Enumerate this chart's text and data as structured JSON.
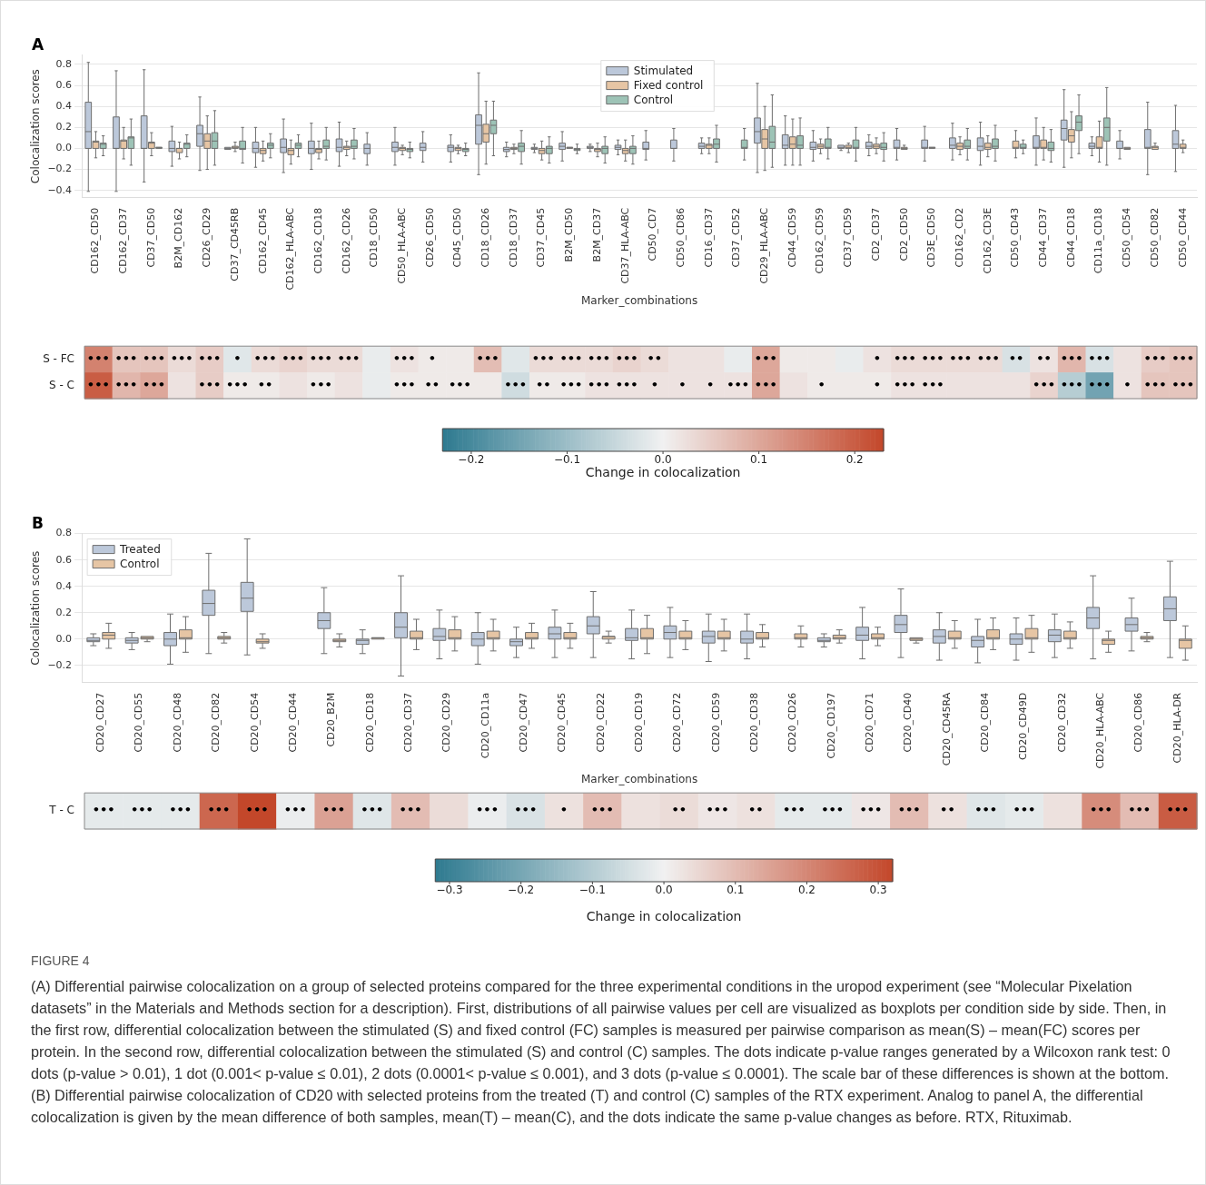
{
  "chart_data": [
    {
      "type": "box",
      "title": "A",
      "xlabel": "Marker_combinations",
      "ylabel": "Colocalization scores",
      "ylim": [
        -0.47,
        0.89
      ],
      "yticks": [
        {
          "value": -0.4,
          "label": "−0.4"
        },
        {
          "value": -0.2,
          "label": "−0.2"
        },
        {
          "value": 0,
          "label": "0.0"
        },
        0.2,
        0.4,
        0.6,
        0.8
      ],
      "grid": "y",
      "legend": "top",
      "categories": [
        "CD162_CD50",
        "CD162_CD37",
        "CD37_CD50",
        "B2M_CD162",
        "CD26_CD29",
        "CD37_CD45RB",
        "CD162_CD45",
        "CD162_HLA-ABC",
        "CD162_CD18",
        "CD162_CD26",
        "CD18_CD50",
        "CD50_HLA-ABC",
        "CD26_CD50",
        "CD45_CD50",
        "CD18_CD26",
        "CD18_CD37",
        "CD37_CD45",
        "B2M_CD50",
        "B2M_CD37",
        "CD37_HLA-ABC",
        "CD50_CD7",
        "CD50_CD86",
        "CD16_CD37",
        "CD37_CD52",
        "CD29_HLA-ABC",
        "CD44_CD59",
        "CD162_CD59",
        "CD37_CD59",
        "CD2_CD37",
        "CD2_CD50",
        "CD3E_CD50",
        "CD162_CD2",
        "CD162_CD3E",
        "CD50_CD43",
        "CD44_CD37",
        "CD44_CD18",
        "CD11a_CD18",
        "CD50_CD54",
        "CD50_CD82",
        "CD50_CD44"
      ],
      "series": [
        {
          "name": "Stimulated",
          "color": "#bcc8da",
          "boxes": [
            {
              "low": -0.41,
              "q1": 0,
              "median": 0.16,
              "q3": 0.44,
              "high": 0.82
            },
            {
              "low": -0.41,
              "q1": 0,
              "median": 0,
              "q3": 0.3,
              "high": 0.74
            },
            {
              "low": -0.32,
              "q1": 0,
              "median": 0,
              "q3": 0.31,
              "high": 0.75
            },
            {
              "low": -0.17,
              "q1": -0.03,
              "median": 0,
              "q3": 0.07,
              "high": 0.21
            },
            {
              "low": -0.21,
              "q1": 0.02,
              "median": 0.14,
              "q3": 0.22,
              "high": 0.49
            },
            {
              "low": -0.01,
              "q1": -0.01,
              "median": 0,
              "q3": 0.01,
              "high": 0.01
            },
            {
              "low": -0.18,
              "q1": -0.04,
              "median": 0,
              "q3": 0.06,
              "high": 0.2
            },
            {
              "low": -0.23,
              "q1": -0.04,
              "median": 0.01,
              "q3": 0.09,
              "high": 0.28
            },
            {
              "low": -0.2,
              "q1": -0.05,
              "median": 0,
              "q3": 0.07,
              "high": 0.24
            },
            {
              "low": -0.17,
              "q1": -0.03,
              "median": 0.01,
              "q3": 0.09,
              "high": 0.25
            },
            {
              "low": -0.16,
              "q1": -0.05,
              "median": 0,
              "q3": 0.04,
              "high": 0.15
            },
            {
              "low": -0.16,
              "q1": -0.03,
              "median": 0.01,
              "q3": 0.06,
              "high": 0.2
            },
            {
              "low": -0.13,
              "q1": -0.02,
              "median": 0.01,
              "q3": 0.05,
              "high": 0.16
            },
            {
              "low": -0.13,
              "q1": -0.03,
              "median": 0.01,
              "q3": 0.03,
              "high": 0.13
            },
            {
              "low": -0.25,
              "q1": 0.04,
              "median": 0.22,
              "q3": 0.32,
              "high": 0.72
            },
            {
              "low": -0.08,
              "q1": -0.03,
              "median": -0.01,
              "q3": 0.01,
              "high": 0.06
            },
            {
              "low": -0.04,
              "q1": -0.01,
              "median": 0,
              "q3": 0.01,
              "high": 0.04
            },
            {
              "low": -0.12,
              "q1": -0.01,
              "median": 0.02,
              "q3": 0.05,
              "high": 0.16
            },
            {
              "low": -0.03,
              "q1": 0,
              "median": 0.01,
              "q3": 0.02,
              "high": 0.04
            },
            {
              "low": -0.06,
              "q1": -0.01,
              "median": 0.01,
              "q3": 0.03,
              "high": 0.08
            },
            {
              "low": -0.11,
              "q1": -0.01,
              "median": 0,
              "q3": 0.06,
              "high": 0.17
            },
            {
              "low": -0.12,
              "q1": 0,
              "median": 0,
              "q3": 0.08,
              "high": 0.19
            },
            {
              "low": -0.05,
              "q1": 0,
              "median": 0.02,
              "q3": 0.05,
              "high": 0.1
            },
            null,
            {
              "low": -0.23,
              "q1": 0.05,
              "median": 0.16,
              "q3": 0.29,
              "high": 0.62
            },
            {
              "low": -0.16,
              "q1": 0,
              "median": 0.03,
              "q3": 0.13,
              "high": 0.31
            },
            {
              "low": -0.12,
              "q1": -0.01,
              "median": 0.01,
              "q3": 0.06,
              "high": 0.17
            },
            {
              "low": -0.02,
              "q1": 0,
              "median": 0.01,
              "q3": 0.03,
              "high": 0.04
            },
            {
              "low": -0.07,
              "q1": 0,
              "median": 0.02,
              "q3": 0.06,
              "high": 0.13
            },
            {
              "low": -0.11,
              "q1": 0,
              "median": 0.01,
              "q3": 0.08,
              "high": 0.19
            },
            {
              "low": -0.12,
              "q1": 0,
              "median": 0.01,
              "q3": 0.08,
              "high": 0.21
            },
            {
              "low": -0.11,
              "q1": 0,
              "median": 0.03,
              "q3": 0.1,
              "high": 0.24
            },
            {
              "low": -0.16,
              "q1": -0.02,
              "median": 0.02,
              "q3": 0.1,
              "high": 0.25
            },
            null,
            {
              "low": -0.16,
              "q1": 0,
              "median": 0.01,
              "q3": 0.12,
              "high": 0.29
            },
            {
              "low": -0.18,
              "q1": 0.08,
              "median": 0.19,
              "q3": 0.27,
              "high": 0.56
            },
            {
              "low": -0.07,
              "q1": 0,
              "median": 0.02,
              "q3": 0.05,
              "high": 0.11
            },
            {
              "low": -0.1,
              "q1": 0,
              "median": 0,
              "q3": 0.07,
              "high": 0.17
            },
            {
              "low": -0.25,
              "q1": 0,
              "median": 0.01,
              "q3": 0.18,
              "high": 0.44
            },
            {
              "low": -0.22,
              "q1": 0,
              "median": 0.04,
              "q3": 0.17,
              "high": 0.41
            }
          ]
        },
        {
          "name": "Fixed control",
          "color": "#e6c5a4",
          "boxes": [
            {
              "low": -0.09,
              "q1": 0,
              "median": 0.06,
              "q3": 0.07,
              "high": 0.16
            },
            {
              "low": -0.1,
              "q1": 0,
              "median": 0.07,
              "q3": 0.08,
              "high": 0.2
            },
            {
              "low": -0.07,
              "q1": 0,
              "median": 0.05,
              "q3": 0.06,
              "high": 0.15
            },
            {
              "low": -0.1,
              "q1": -0.04,
              "median": 0,
              "q3": 0,
              "high": 0.06
            },
            {
              "low": -0.2,
              "q1": 0,
              "median": 0.07,
              "q3": 0.14,
              "high": 0.31
            },
            {
              "low": -0.03,
              "q1": 0,
              "median": 0.01,
              "q3": 0.02,
              "high": 0.06
            },
            {
              "low": -0.12,
              "q1": -0.05,
              "median": -0.02,
              "q3": 0,
              "high": 0.07
            },
            {
              "low": -0.15,
              "q1": -0.06,
              "median": -0.02,
              "q3": 0,
              "high": 0.08
            },
            {
              "low": -0.1,
              "q1": -0.04,
              "median": -0.01,
              "q3": 0,
              "high": 0.07
            },
            {
              "low": -0.07,
              "q1": -0.01,
              "median": 0.01,
              "q3": 0.02,
              "high": 0.07
            },
            null,
            {
              "low": -0.06,
              "q1": -0.02,
              "median": 0,
              "q3": 0.01,
              "high": 0.03
            },
            null,
            {
              "low": -0.05,
              "q1": -0.02,
              "median": 0,
              "q3": 0.01,
              "high": 0.03
            },
            {
              "low": -0.15,
              "q1": 0.06,
              "median": 0.14,
              "q3": 0.23,
              "high": 0.45
            },
            {
              "low": -0.05,
              "q1": -0.01,
              "median": 0,
              "q3": 0.01,
              "high": 0.04
            },
            {
              "low": -0.11,
              "q1": -0.05,
              "median": -0.02,
              "q3": 0,
              "high": 0.07
            },
            {
              "low": -0.01,
              "q1": 0,
              "median": 0.01,
              "q3": 0.01,
              "high": 0.02
            },
            {
              "low": -0.08,
              "q1": -0.03,
              "median": -0.01,
              "q3": 0,
              "high": 0.05
            },
            {
              "low": -0.12,
              "q1": -0.05,
              "median": -0.02,
              "q3": 0,
              "high": 0.08
            },
            null,
            null,
            {
              "low": -0.05,
              "q1": 0,
              "median": 0.03,
              "q3": 0.04,
              "high": 0.1
            },
            null,
            {
              "low": -0.21,
              "q1": 0,
              "median": 0.09,
              "q3": 0.18,
              "high": 0.4
            },
            {
              "low": -0.16,
              "q1": 0,
              "median": 0.04,
              "q3": 0.11,
              "high": 0.28
            },
            {
              "low": -0.05,
              "q1": 0,
              "median": 0.02,
              "q3": 0.04,
              "high": 0.09
            },
            {
              "low": -0.04,
              "q1": 0,
              "median": 0.01,
              "q3": 0.03,
              "high": 0.05
            },
            {
              "low": -0.05,
              "q1": 0,
              "median": 0.02,
              "q3": 0.04,
              "high": 0.1
            },
            {
              "low": -0.02,
              "q1": -0.01,
              "median": 0,
              "q3": 0.01,
              "high": 0.03
            },
            {
              "low": -0.01,
              "q1": 0,
              "median": 0.01,
              "q3": 0.01,
              "high": 0.02
            },
            {
              "low": -0.06,
              "q1": -0.01,
              "median": 0.02,
              "q3": 0.05,
              "high": 0.11
            },
            {
              "low": -0.08,
              "q1": -0.01,
              "median": 0.01,
              "q3": 0.05,
              "high": 0.12
            },
            {
              "low": -0.09,
              "q1": 0,
              "median": 0.01,
              "q3": 0.07,
              "high": 0.17
            },
            {
              "low": -0.11,
              "q1": 0,
              "median": 0.01,
              "q3": 0.08,
              "high": 0.2
            },
            {
              "low": -0.09,
              "q1": 0.06,
              "median": 0.12,
              "q3": 0.18,
              "high": 0.35
            },
            {
              "low": -0.13,
              "q1": 0,
              "median": 0.01,
              "q3": 0.11,
              "high": 0.26
            },
            {
              "low": -0.01,
              "q1": -0.01,
              "median": 0,
              "q3": 0.01,
              "high": 0.01
            },
            {
              "low": -0.02,
              "q1": -0.01,
              "median": 0.01,
              "q3": 0.02,
              "high": 0.05
            },
            {
              "low": -0.04,
              "q1": 0,
              "median": 0.01,
              "q3": 0.04,
              "high": 0.08
            }
          ]
        },
        {
          "name": "Control",
          "color": "#9dc3b6",
          "boxes": [
            {
              "low": -0.07,
              "q1": 0,
              "median": 0.04,
              "q3": 0.05,
              "high": 0.12
            },
            {
              "low": -0.16,
              "q1": 0,
              "median": 0.1,
              "q3": 0.11,
              "high": 0.28
            },
            {
              "low": -0.01,
              "q1": 0,
              "median": 0.01,
              "q3": 0.01,
              "high": 0.02
            },
            {
              "low": -0.08,
              "q1": 0,
              "median": 0.04,
              "q3": 0.05,
              "high": 0.13
            },
            {
              "low": -0.16,
              "q1": 0,
              "median": 0.07,
              "q3": 0.15,
              "high": 0.36
            },
            {
              "low": -0.14,
              "q1": -0.01,
              "median": 0,
              "q3": 0.07,
              "high": 0.2
            },
            {
              "low": -0.09,
              "q1": 0,
              "median": 0.03,
              "q3": 0.05,
              "high": 0.14
            },
            {
              "low": -0.08,
              "q1": 0,
              "median": 0.03,
              "q3": 0.05,
              "high": 0.13
            },
            {
              "low": -0.11,
              "q1": 0,
              "median": 0.02,
              "q3": 0.08,
              "high": 0.2
            },
            {
              "low": -0.1,
              "q1": 0,
              "median": 0.02,
              "q3": 0.08,
              "high": 0.19
            },
            null,
            {
              "low": -0.09,
              "q1": -0.03,
              "median": -0.01,
              "q3": 0,
              "high": 0.06
            },
            null,
            {
              "low": -0.07,
              "q1": -0.03,
              "median": -0.01,
              "q3": 0,
              "high": 0.05
            },
            {
              "low": -0.07,
              "q1": 0.14,
              "median": 0.22,
              "q3": 0.27,
              "high": 0.45
            },
            {
              "low": -0.15,
              "q1": -0.03,
              "median": 0.02,
              "q3": 0.05,
              "high": 0.17
            },
            {
              "low": -0.14,
              "q1": -0.05,
              "median": 0,
              "q3": 0.02,
              "high": 0.11
            },
            {
              "low": -0.05,
              "q1": -0.02,
              "median": -0.01,
              "q3": 0,
              "high": 0.04
            },
            {
              "low": -0.14,
              "q1": -0.05,
              "median": 0,
              "q3": 0.02,
              "high": 0.11
            },
            {
              "low": -0.15,
              "q1": -0.05,
              "median": 0,
              "q3": 0.02,
              "high": 0.12
            },
            null,
            null,
            {
              "low": -0.13,
              "q1": 0,
              "median": 0.04,
              "q3": 0.09,
              "high": 0.22
            },
            {
              "low": -0.11,
              "q1": 0,
              "median": 0.01,
              "q3": 0.08,
              "high": 0.19
            },
            {
              "low": -0.18,
              "q1": 0,
              "median": 0.06,
              "q3": 0.21,
              "high": 0.51
            },
            {
              "low": -0.16,
              "q1": 0,
              "median": 0.03,
              "q3": 0.12,
              "high": 0.29
            },
            {
              "low": -0.1,
              "q1": 0,
              "median": 0.01,
              "q3": 0.09,
              "high": 0.2
            },
            {
              "low": -0.12,
              "q1": 0,
              "median": 0.01,
              "q3": 0.08,
              "high": 0.2
            },
            {
              "low": -0.12,
              "q1": -0.01,
              "median": 0.01,
              "q3": 0.05,
              "high": 0.15
            },
            null,
            null,
            {
              "low": -0.11,
              "q1": 0,
              "median": 0.02,
              "q3": 0.08,
              "high": 0.19
            },
            {
              "low": -0.12,
              "q1": 0,
              "median": 0.02,
              "q3": 0.09,
              "high": 0.22
            },
            {
              "low": -0.05,
              "q1": 0,
              "median": 0.01,
              "q3": 0.04,
              "high": 0.08
            },
            {
              "low": -0.13,
              "q1": -0.02,
              "median": 0,
              "q3": 0.06,
              "high": 0.18
            },
            {
              "low": -0.05,
              "q1": 0.17,
              "median": 0.25,
              "q3": 0.31,
              "high": 0.51
            },
            {
              "low": -0.16,
              "q1": 0.07,
              "median": 0.2,
              "q3": 0.29,
              "high": 0.58
            },
            null,
            null,
            null
          ]
        }
      ]
    },
    {
      "type": "heatmap",
      "categories": [
        null,
        null,
        null,
        null,
        null,
        null,
        null,
        null,
        null,
        null,
        null,
        null,
        null,
        null,
        null,
        null,
        null,
        null,
        null,
        null,
        null,
        null,
        null,
        null,
        null,
        null,
        null,
        null,
        null,
        null,
        null,
        null,
        null,
        null,
        null,
        null,
        null,
        null,
        null,
        null
      ],
      "y_categories": [
        "S - FC",
        "S - C"
      ],
      "tick_labels": "y",
      "cells": [
        [
          0.15,
          0.06,
          0.06,
          0.03,
          0.05,
          -0.02,
          0.03,
          0.04,
          0.03,
          0.03,
          -0.01,
          0.02,
          0.01,
          0.01,
          0.07,
          -0.02,
          0.03,
          0.03,
          0.03,
          0.04,
          0.03,
          0.02,
          0.02,
          -0.01,
          0.1,
          0.01,
          0.01,
          -0.01,
          0.02,
          0.03,
          0.03,
          0.03,
          0.03,
          -0.03,
          0.02,
          0.08,
          -0.03,
          0.02,
          0.05,
          0.06
        ],
        [
          0.2,
          0.08,
          0.1,
          0.02,
          0.05,
          0.01,
          0.01,
          0.02,
          0.01,
          0.02,
          -0.01,
          0.01,
          0.01,
          0.01,
          0.01,
          -0.04,
          0.01,
          0.01,
          0.02,
          0.02,
          0.02,
          0.02,
          0.02,
          0.02,
          0.1,
          0.02,
          0.01,
          0.01,
          0.01,
          0.02,
          0.02,
          0.02,
          0.02,
          0.02,
          0.04,
          -0.07,
          -0.15,
          0.02,
          0.06,
          0.06
        ]
      ],
      "cell_labels": [
        [
          "•••",
          "•••",
          "•••",
          "•••",
          "•••",
          "•",
          "•••",
          "•••",
          "•••",
          "•••",
          null,
          "•••",
          "•",
          null,
          "•••",
          null,
          "•••",
          "•••",
          "•••",
          "•••",
          "••",
          null,
          null,
          null,
          "•••",
          null,
          null,
          null,
          "•",
          "•••",
          "•••",
          "•••",
          "•••",
          "••",
          "••",
          "•••",
          "•••",
          null,
          "•••",
          "•••"
        ],
        [
          "•••",
          "•••",
          "•••",
          null,
          "•••",
          "•••",
          "••",
          null,
          "•••",
          null,
          null,
          "•••",
          "••",
          "•••",
          null,
          "•••",
          "••",
          "•••",
          "•••",
          "•••",
          "•",
          "•",
          "•",
          "•••",
          "•••",
          null,
          "•",
          null,
          "•",
          "•••",
          "•••",
          null,
          null,
          null,
          "•••",
          "•••",
          "•••",
          "•",
          "•••",
          "•••"
        ]
      ],
      "clim": [
        -0.23,
        0.23
      ],
      "cticks": [
        {
          "value": -0.2,
          "label": "−0.2"
        },
        {
          "value": -0.1,
          "label": "−0.1"
        },
        {
          "value": 0,
          "label": "0.0"
        },
        0.1,
        0.2
      ],
      "clabel": "Change in colocalization"
    },
    {
      "type": "box",
      "title": "B",
      "xlabel": "Marker_combinations",
      "ylabel": "Colocalization scores",
      "ylim": [
        -0.33,
        0.8
      ],
      "yticks": [
        {
          "value": -0.2,
          "label": "−0.2"
        },
        {
          "value": 0,
          "label": "0.0"
        },
        0.2,
        0.4,
        0.6,
        0.8
      ],
      "grid": "y",
      "legend": "top left",
      "categories": [
        "CD20_CD27",
        "CD20_CD55",
        "CD20_CD48",
        "CD20_CD82",
        "CD20_CD54",
        "CD20_CD44",
        "CD20_B2M",
        "CD20_CD18",
        "CD20_CD37",
        "CD20_CD29",
        "CD20_CD11a",
        "CD20_CD47",
        "CD20_CD45",
        "CD20_CD22",
        "CD20_CD19",
        "CD20_CD72",
        "CD20_CD59",
        "CD20_CD38",
        "CD20_CD26",
        "CD20_CD197",
        "CD20_CD71",
        "CD20_CD40",
        "CD20_CD45RA",
        "CD20_CD84",
        "CD20_CD49D",
        "CD20_CD32",
        "CD20_HLA-ABC",
        "CD20_CD86",
        "CD20_HLA-DR"
      ],
      "series": [
        {
          "name": "Treated",
          "color": "#bcc8da",
          "boxes": [
            {
              "low": -0.05,
              "q1": -0.02,
              "median": -0.01,
              "q3": 0.01,
              "high": 0.04
            },
            {
              "low": -0.08,
              "q1": -0.03,
              "median": -0.01,
              "q3": 0.01,
              "high": 0.05
            },
            {
              "low": -0.19,
              "q1": -0.05,
              "median": 0,
              "q3": 0.05,
              "high": 0.19
            },
            {
              "low": -0.11,
              "q1": 0.18,
              "median": 0.27,
              "q3": 0.37,
              "high": 0.65
            },
            {
              "low": -0.12,
              "q1": 0.21,
              "median": 0.31,
              "q3": 0.43,
              "high": 0.76
            },
            null,
            {
              "low": -0.11,
              "q1": 0.08,
              "median": 0.14,
              "q3": 0.2,
              "high": 0.39
            },
            {
              "low": -0.11,
              "q1": -0.04,
              "median": -0.01,
              "q3": 0,
              "high": 0.07
            },
            {
              "low": -0.28,
              "q1": 0.01,
              "median": 0.09,
              "q3": 0.2,
              "high": 0.48
            },
            {
              "low": -0.15,
              "q1": -0.01,
              "median": 0.02,
              "q3": 0.08,
              "high": 0.22
            },
            {
              "low": -0.19,
              "q1": -0.05,
              "median": 0,
              "q3": 0.05,
              "high": 0.2
            },
            {
              "low": -0.14,
              "q1": -0.05,
              "median": -0.02,
              "q3": 0,
              "high": 0.09
            },
            {
              "low": -0.14,
              "q1": 0,
              "median": 0.04,
              "q3": 0.09,
              "high": 0.22
            },
            {
              "low": -0.14,
              "q1": 0.04,
              "median": 0.1,
              "q3": 0.17,
              "high": 0.36
            },
            {
              "low": -0.15,
              "q1": -0.01,
              "median": 0.01,
              "q3": 0.08,
              "high": 0.22
            },
            {
              "low": -0.14,
              "q1": 0,
              "median": 0.05,
              "q3": 0.1,
              "high": 0.24
            },
            {
              "low": -0.17,
              "q1": -0.03,
              "median": 0.02,
              "q3": 0.06,
              "high": 0.19
            },
            {
              "low": -0.15,
              "q1": -0.03,
              "median": 0,
              "q3": 0.06,
              "high": 0.19
            },
            null,
            {
              "low": -0.06,
              "q1": -0.02,
              "median": -0.01,
              "q3": 0.01,
              "high": 0.04
            },
            {
              "low": -0.15,
              "q1": -0.01,
              "median": 0.03,
              "q3": 0.09,
              "high": 0.24
            },
            {
              "low": -0.14,
              "q1": 0.05,
              "median": 0.11,
              "q3": 0.18,
              "high": 0.38
            },
            {
              "low": -0.16,
              "q1": -0.03,
              "median": 0.02,
              "q3": 0.07,
              "high": 0.2
            },
            {
              "low": -0.18,
              "q1": -0.06,
              "median": -0.01,
              "q3": 0.02,
              "high": 0.15
            },
            {
              "low": -0.16,
              "q1": -0.04,
              "median": 0,
              "q3": 0.04,
              "high": 0.16
            },
            {
              "low": -0.14,
              "q1": -0.02,
              "median": 0.03,
              "q3": 0.07,
              "high": 0.19
            },
            {
              "low": -0.15,
              "q1": 0.08,
              "median": 0.16,
              "q3": 0.24,
              "high": 0.48
            },
            {
              "low": -0.09,
              "q1": 0.06,
              "median": 0.11,
              "q3": 0.16,
              "high": 0.31
            },
            {
              "low": -0.14,
              "q1": 0.14,
              "median": 0.23,
              "q3": 0.32,
              "high": 0.59
            }
          ]
        },
        {
          "name": "Control",
          "color": "#e6c5a4",
          "boxes": [
            {
              "low": -0.07,
              "q1": 0,
              "median": 0.03,
              "q3": 0.05,
              "high": 0.12
            },
            {
              "low": -0.02,
              "q1": 0,
              "median": 0.01,
              "q3": 0.02,
              "high": 0.03
            },
            {
              "low": -0.1,
              "q1": 0,
              "median": 0.01,
              "q3": 0.07,
              "high": 0.17
            },
            {
              "low": -0.03,
              "q1": 0,
              "median": 0.01,
              "q3": 0.02,
              "high": 0.05
            },
            {
              "low": -0.07,
              "q1": -0.03,
              "median": -0.02,
              "q3": 0,
              "high": 0.04
            },
            null,
            {
              "low": -0.06,
              "q1": -0.02,
              "median": -0.01,
              "q3": 0,
              "high": 0.04
            },
            {
              "low": -0.01,
              "q1": 0,
              "median": 0.01,
              "q3": 0.01,
              "high": 0.02
            },
            {
              "low": -0.08,
              "q1": 0,
              "median": 0.01,
              "q3": 0.06,
              "high": 0.15
            },
            {
              "low": -0.09,
              "q1": 0,
              "median": 0.01,
              "q3": 0.07,
              "high": 0.17
            },
            {
              "low": -0.09,
              "q1": 0,
              "median": 0.01,
              "q3": 0.06,
              "high": 0.15
            },
            {
              "low": -0.07,
              "q1": 0,
              "median": 0.01,
              "q3": 0.05,
              "high": 0.12
            },
            {
              "low": -0.07,
              "q1": 0,
              "median": 0.01,
              "q3": 0.05,
              "high": 0.12
            },
            {
              "low": -0.03,
              "q1": 0,
              "median": 0.02,
              "q3": 0.02,
              "high": 0.06
            },
            {
              "low": -0.11,
              "q1": 0,
              "median": 0.01,
              "q3": 0.08,
              "high": 0.18
            },
            {
              "low": -0.08,
              "q1": 0,
              "median": 0.01,
              "q3": 0.06,
              "high": 0.14
            },
            {
              "low": -0.09,
              "q1": 0,
              "median": 0.01,
              "q3": 0.06,
              "high": 0.15
            },
            {
              "low": -0.06,
              "q1": 0,
              "median": 0.01,
              "q3": 0.05,
              "high": 0.11
            },
            {
              "low": -0.06,
              "q1": 0,
              "median": 0.01,
              "q3": 0.04,
              "high": 0.1
            },
            {
              "low": -0.03,
              "q1": 0,
              "median": 0.01,
              "q3": 0.03,
              "high": 0.07
            },
            {
              "low": -0.05,
              "q1": 0,
              "median": 0.01,
              "q3": 0.04,
              "high": 0.09
            },
            {
              "low": -0.03,
              "q1": -0.01,
              "median": 0,
              "q3": 0.01,
              "high": 0.02
            },
            {
              "low": -0.07,
              "q1": 0,
              "median": 0.01,
              "q3": 0.06,
              "high": 0.14
            },
            {
              "low": -0.08,
              "q1": 0,
              "median": 0.01,
              "q3": 0.07,
              "high": 0.16
            },
            {
              "low": -0.1,
              "q1": 0,
              "median": 0.01,
              "q3": 0.08,
              "high": 0.18
            },
            {
              "low": -0.07,
              "q1": 0,
              "median": 0.01,
              "q3": 0.06,
              "high": 0.13
            },
            {
              "low": -0.1,
              "q1": -0.04,
              "median": -0.01,
              "q3": 0,
              "high": 0.06
            },
            {
              "low": -0.02,
              "q1": 0,
              "median": 0.01,
              "q3": 0.02,
              "high": 0.05
            },
            {
              "low": -0.16,
              "q1": -0.07,
              "median": -0.01,
              "q3": 0,
              "high": 0.1
            }
          ]
        }
      ]
    },
    {
      "type": "heatmap",
      "categories": [
        null,
        null,
        null,
        null,
        null,
        null,
        null,
        null,
        null,
        null,
        null,
        null,
        null,
        null,
        null,
        null,
        null,
        null,
        null,
        null,
        null,
        null,
        null,
        null,
        null,
        null,
        null,
        null,
        null
      ],
      "y_categories": [
        "T - C"
      ],
      "tick_labels": "y",
      "cells": [
        [
          -0.02,
          -0.02,
          -0.02,
          0.26,
          0.32,
          -0.01,
          0.15,
          -0.03,
          0.1,
          0.04,
          -0.01,
          -0.04,
          0.03,
          0.1,
          0.03,
          0.04,
          0.02,
          0.03,
          -0.02,
          -0.02,
          0.02,
          0.1,
          0.03,
          -0.03,
          -0.02,
          0.03,
          0.19,
          0.1,
          0.28
        ]
      ],
      "cell_labels": [
        [
          "•••",
          "•••",
          "•••",
          "•••",
          "•••",
          "•••",
          "•••",
          "•••",
          "•••",
          null,
          "•••",
          "•••",
          "•",
          "•••",
          null,
          "••",
          "•••",
          "••",
          "•••",
          "•••",
          "•••",
          "•••",
          "••",
          "•••",
          "•••",
          null,
          "•••",
          "•••",
          "•••"
        ]
      ],
      "clim": [
        -0.32,
        0.32
      ],
      "cticks": [
        {
          "value": -0.3,
          "label": "−0.3"
        },
        {
          "value": -0.2,
          "label": "−0.2"
        },
        {
          "value": -0.1,
          "label": "−0.1"
        },
        {
          "value": 0,
          "label": "0.0"
        },
        0.1,
        0.2,
        0.3
      ],
      "clabel": "Change in colocalization",
      "annotations": [
        "FIGURE 4",
        "(A) Differential pairwise colocalization on a group of selected proteins compared for the three experimental conditions in the uropod experiment (see “Molecular Pixelation datasets” in the Materials and Methods section for a description). First, distributions of all pairwise values per cell are visualized as boxplots per condition side by side. Then, in the first row, differential colocalization between the stimulated (S) and fixed control (FC) samples is measured per pairwise comparison as mean(S) – mean(FC) scores per protein. In the second row, differential colocalization between the stimulated (S) and control (C) samples. The dots indicate p-value ranges generated by a Wilcoxon rank test: 0 dots (p-value > 0.01), 1 dot (0.001< p-value ≤ 0.01), 2 dots (0.0001< p-value ≤ 0.001), and 3 dots (p-value ≤ 0.0001). The scale bar of these differences is shown at the bottom.",
        "(B) Differential pairwise colocalization of CD20 with selected proteins from the treated (T) and control (C) samples of the RTX experiment. Analog to panel A, the differential colocalization is given by the mean difference of both samples, mean(T) – mean(C), and the dots indicate the same p-value changes as before. RTX, Rituximab."
      ]
    }
  ]
}
